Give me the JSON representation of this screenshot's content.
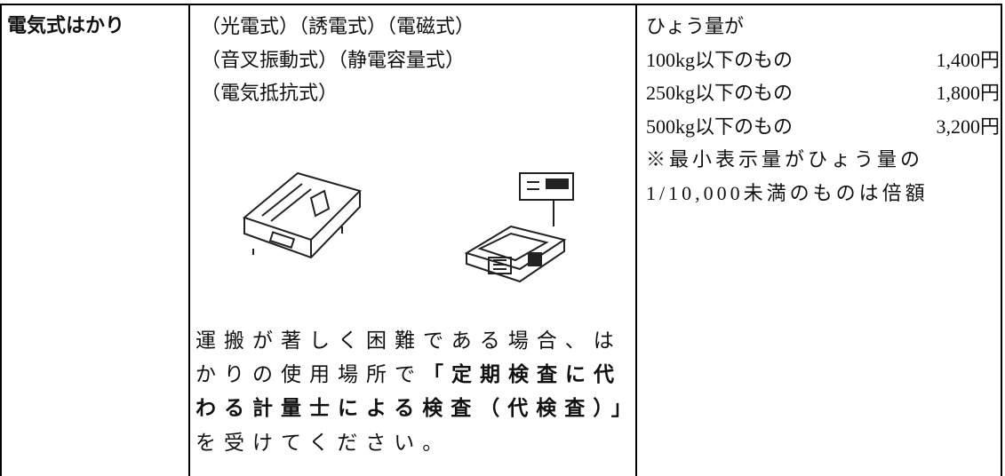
{
  "table": {
    "header": "電気式はかり",
    "types": [
      "（光電式）（誘電式）（電磁式）",
      "（音叉振動式）（静電容量式）",
      "（電気抵抗式）"
    ],
    "note": {
      "before": "運搬が著しく困難である場合、はかりの使用場所で",
      "bold": "「定期検査に代わる計量士による検査（代検査）」",
      "after": "を受けてください。"
    },
    "fees": {
      "intro": "ひょう量が",
      "rows": [
        [
          "100kg以下のもの",
          "1,400円"
        ],
        [
          "250kg以下のもの",
          "1,800円"
        ],
        [
          "500kg以下のもの",
          "3,200円"
        ]
      ],
      "remark": "※最小表示量がひょう量の1/10,000未満のものは倍額"
    }
  }
}
